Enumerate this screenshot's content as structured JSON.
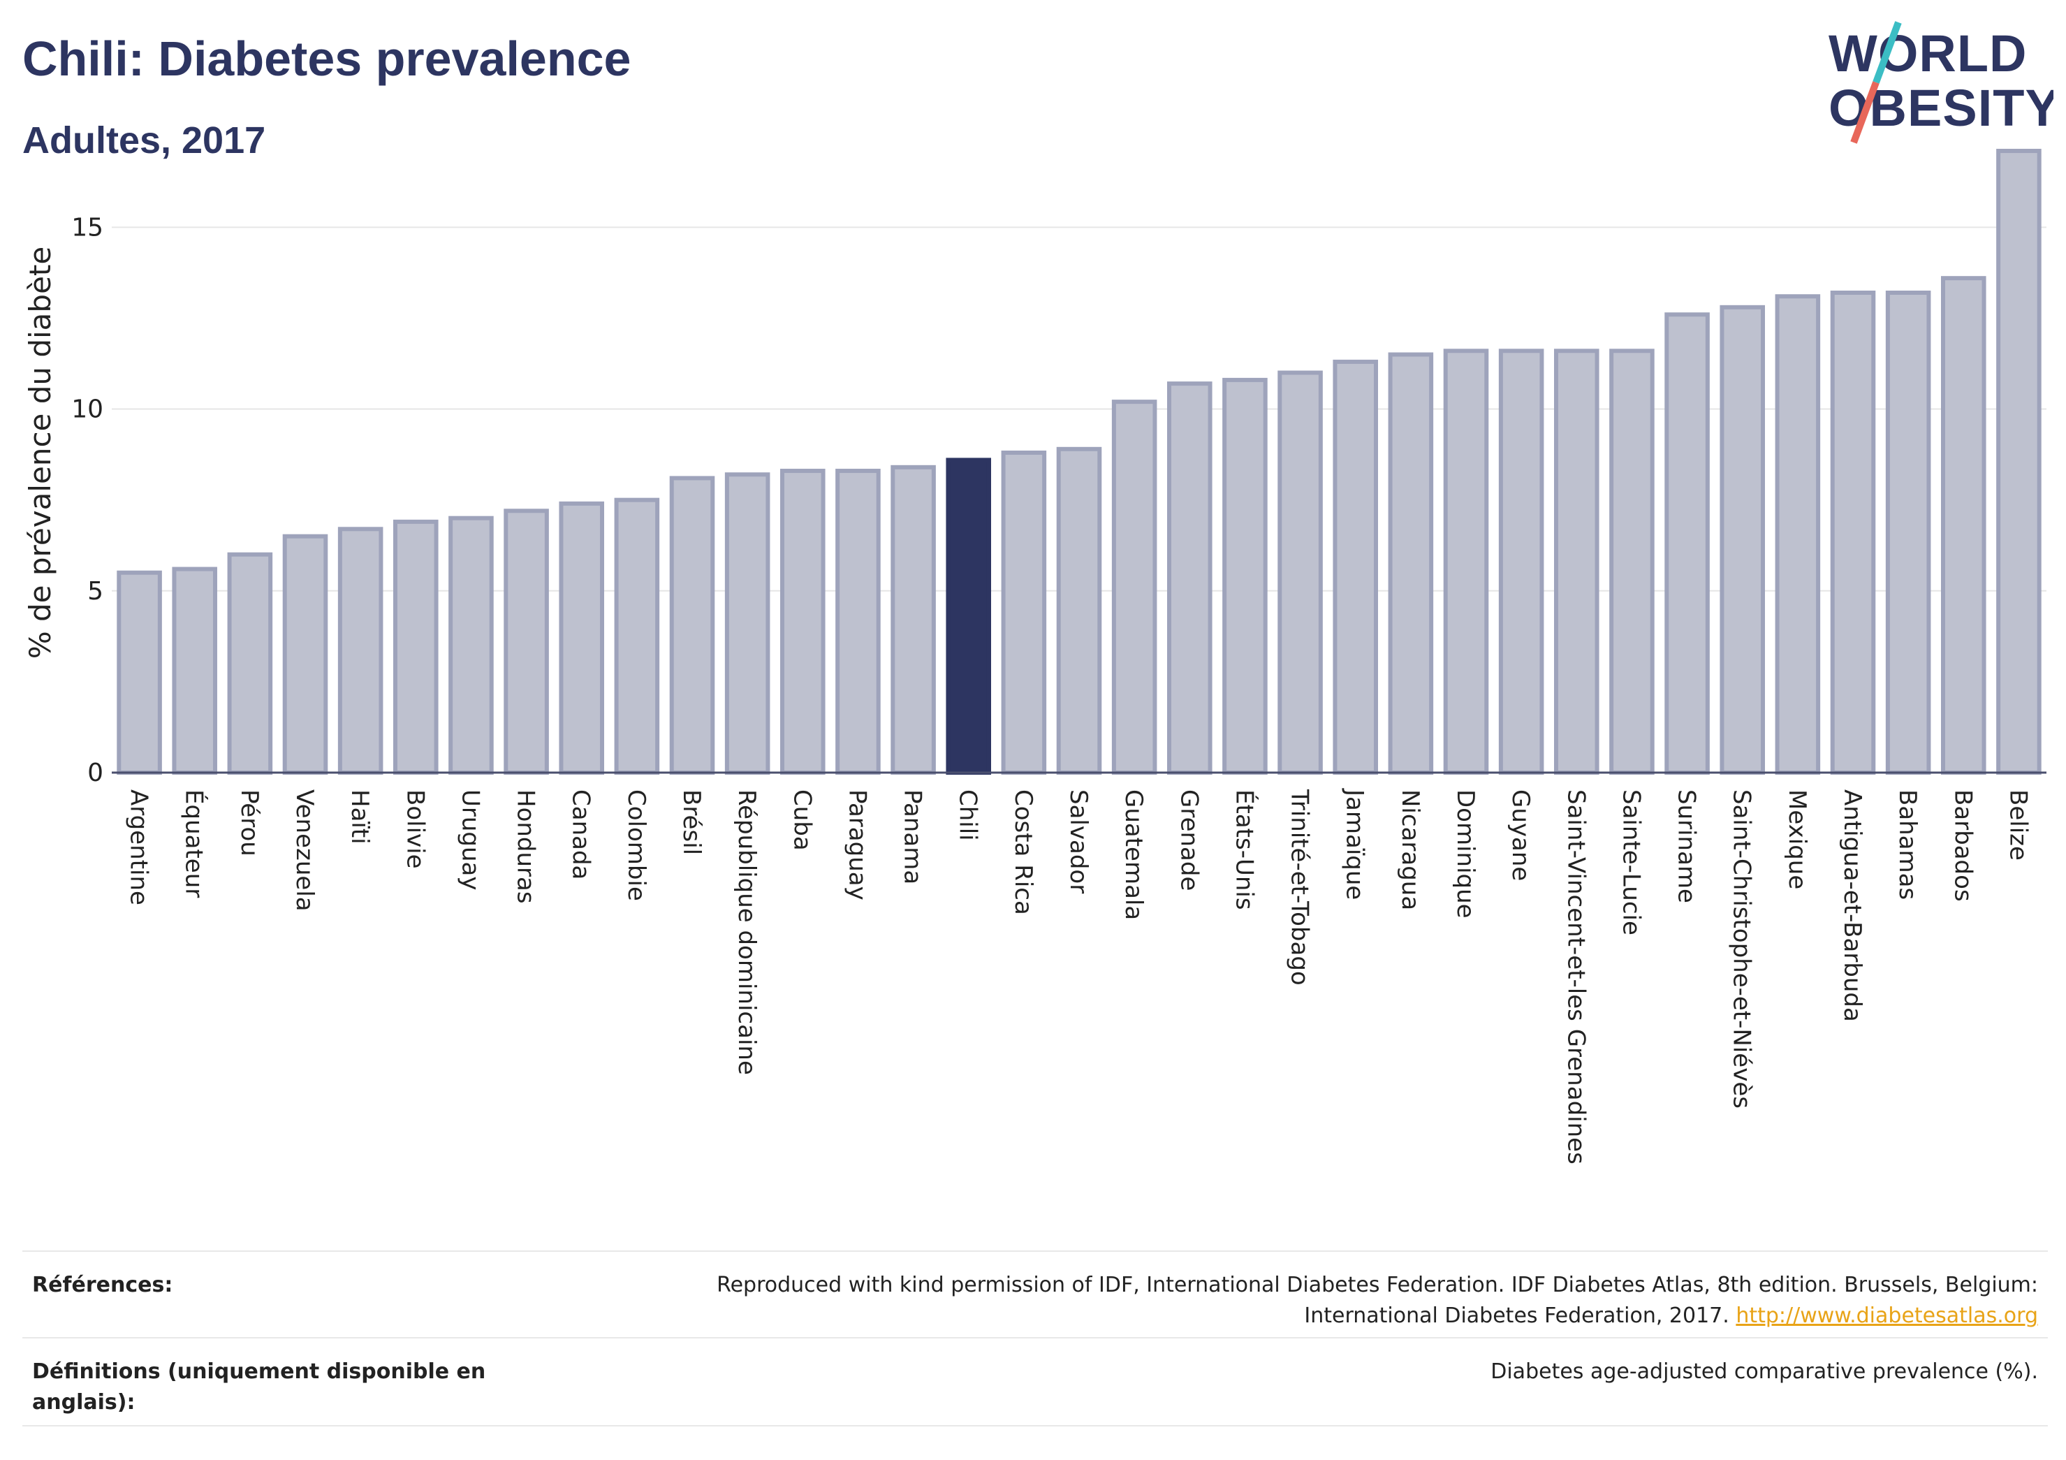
{
  "header": {
    "title": "Chili: Diabetes prevalence",
    "subtitle": "Adultes, 2017"
  },
  "logo": {
    "line1": "WORLD",
    "line2": "OBESITY",
    "colors": {
      "text": "#2d3561",
      "slash_top": "#3bbdc4",
      "slash_bottom": "#e8675a"
    }
  },
  "references": {
    "label": "Références:",
    "text": "Reproduced with kind permission of IDF, International Diabetes Federation. IDF Diabetes Atlas, 8th edition. Brussels, Belgium: International Diabetes Federation, 2017.",
    "link": "http://www.diabetesatlas.org"
  },
  "definitions": {
    "label": "Définitions (uniquement disponible en anglais):",
    "text": "Diabetes age-adjusted comparative prevalence (%)."
  },
  "chart_data": {
    "type": "bar",
    "ylabel": "% de prévalence du diabète",
    "xlabel": "",
    "ylim": [
      0,
      17.6
    ],
    "yticks": [
      0,
      5,
      10,
      15
    ],
    "grid": true,
    "highlight": "Chili",
    "colors": {
      "bar": "#bec1cf",
      "bar_edge": "#9ea3bb",
      "highlight": "#2d3561",
      "grid": "#e6e6e6",
      "axis": "#4a4f6e"
    },
    "categories": [
      "Argentine",
      "Équateur",
      "Pérou",
      "Venezuela",
      "Haïti",
      "Bolivie",
      "Uruguay",
      "Honduras",
      "Canada",
      "Colombie",
      "Brésil",
      "République dominicaine",
      "Cuba",
      "Paraguay",
      "Panama",
      "Chili",
      "Costa Rica",
      "Salvador",
      "Guatemala",
      "Grenade",
      "États-Unis",
      "Trinité-et-Tobago",
      "Jamaïque",
      "Nicaragua",
      "Dominique",
      "Guyane",
      "Saint-Vincent-et-les Grenadines",
      "Sainte-Lucie",
      "Suriname",
      "Saint-Christophe-et-Niévès",
      "Mexique",
      "Antigua-et-Barbuda",
      "Bahamas",
      "Barbados",
      "Belize"
    ],
    "values": [
      5.5,
      5.6,
      6.0,
      6.5,
      6.7,
      6.9,
      7.0,
      7.2,
      7.4,
      7.5,
      8.1,
      8.2,
      8.3,
      8.3,
      8.4,
      8.6,
      8.8,
      8.9,
      10.2,
      10.7,
      10.8,
      11.0,
      11.3,
      11.5,
      11.6,
      11.6,
      11.6,
      11.6,
      12.6,
      12.8,
      13.1,
      13.2,
      13.2,
      13.6,
      17.1
    ]
  }
}
